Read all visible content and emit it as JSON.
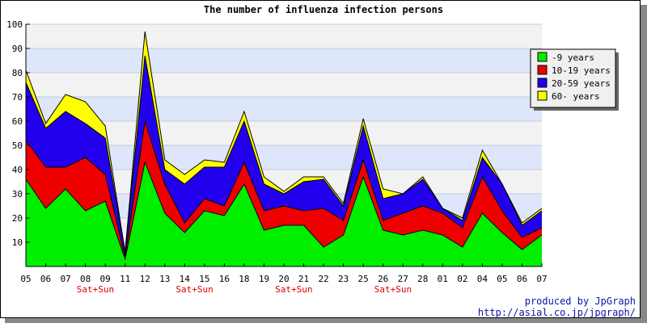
{
  "chart_data": {
    "type": "area",
    "stacked": true,
    "title": "The number of influenza infection persons",
    "categories": [
      "05",
      "06",
      "07",
      "08",
      "09",
      "11",
      "12",
      "13",
      "14",
      "15",
      "16",
      "18",
      "19",
      "20",
      "21",
      "22",
      "23",
      "25",
      "26",
      "27",
      "28",
      "01",
      "02",
      "04",
      "05",
      "06",
      "07"
    ],
    "weekend_label": "Sat+Sun",
    "weekend_after_indices": [
      3,
      8,
      13,
      18
    ],
    "ylim": [
      0,
      100
    ],
    "yticks": [
      10,
      20,
      30,
      40,
      50,
      60,
      70,
      80,
      90,
      100
    ],
    "grid": true,
    "legend_position": "top-right",
    "series": [
      {
        "name": "-9 years",
        "color": "#00ee00",
        "values": [
          36,
          24,
          32,
          23,
          27,
          3,
          43,
          22,
          14,
          23,
          21,
          34,
          15,
          17,
          17,
          8,
          13,
          37,
          15,
          13,
          15,
          13,
          8,
          22,
          14,
          7,
          13
        ]
      },
      {
        "name": "10-19 years",
        "color": "#ee0000",
        "values": [
          16,
          17,
          9,
          22,
          11,
          1,
          17,
          12,
          4,
          5,
          4,
          9,
          8,
          8,
          6,
          16,
          6,
          7,
          4,
          9,
          10,
          9,
          8,
          15,
          9,
          5,
          3
        ]
      },
      {
        "name": "20-59 years",
        "color": "#2200ee",
        "values": [
          24,
          16,
          23,
          14,
          15,
          2,
          27,
          6,
          16,
          13,
          16,
          17,
          11,
          5,
          12,
          12,
          6,
          14,
          9,
          8,
          11,
          2,
          3,
          8,
          11,
          5,
          7
        ]
      },
      {
        "name": "60- years",
        "color": "#ffff00",
        "values": [
          5,
          2,
          7,
          9,
          5,
          0,
          10,
          4,
          4,
          3,
          2,
          4,
          3,
          1,
          2,
          1,
          1,
          3,
          4,
          0,
          1,
          0,
          1,
          3,
          0,
          1,
          1
        ]
      }
    ]
  },
  "credits": {
    "line1": "produced by JpGraph",
    "line2": "http://asial.co.jp/jpgraph/"
  }
}
